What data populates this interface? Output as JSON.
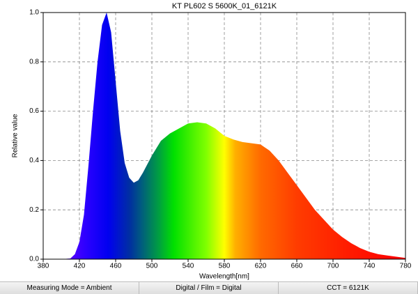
{
  "chart_data": {
    "type": "area",
    "title": "KT PL602 S 5600K_01_6121K",
    "x_label": "Wavelength[nm]",
    "y_label": "Relative value",
    "x": [
      380,
      390,
      400,
      410,
      415,
      420,
      425,
      430,
      435,
      440,
      445,
      450,
      455,
      460,
      465,
      470,
      475,
      480,
      485,
      490,
      500,
      510,
      520,
      530,
      540,
      550,
      560,
      570,
      580,
      590,
      600,
      610,
      620,
      630,
      640,
      650,
      660,
      670,
      680,
      690,
      700,
      710,
      720,
      730,
      740,
      750,
      760,
      770,
      780
    ],
    "values": [
      0,
      0,
      0,
      0.003,
      0.02,
      0.07,
      0.18,
      0.38,
      0.6,
      0.8,
      0.95,
      1.0,
      0.92,
      0.72,
      0.52,
      0.39,
      0.33,
      0.31,
      0.32,
      0.35,
      0.42,
      0.48,
      0.51,
      0.53,
      0.55,
      0.555,
      0.55,
      0.53,
      0.5,
      0.485,
      0.475,
      0.47,
      0.465,
      0.44,
      0.4,
      0.35,
      0.3,
      0.25,
      0.2,
      0.16,
      0.12,
      0.09,
      0.065,
      0.045,
      0.03,
      0.02,
      0.015,
      0.01,
      0.005
    ],
    "xlim": [
      380,
      780
    ],
    "xticks": [
      380,
      420,
      460,
      500,
      540,
      580,
      620,
      660,
      700,
      740,
      780
    ],
    "ylim": [
      0,
      1
    ],
    "yticks": [
      {
        "value": 0,
        "label": "0.0"
      },
      0.2,
      0.4,
      0.6,
      0.8,
      {
        "value": 1,
        "label": "1.0"
      }
    ],
    "grid": true
  },
  "status_bar": [
    "Measuring Mode = Ambient",
    "Digital / Film = Digital",
    "CCT = 6121K"
  ]
}
